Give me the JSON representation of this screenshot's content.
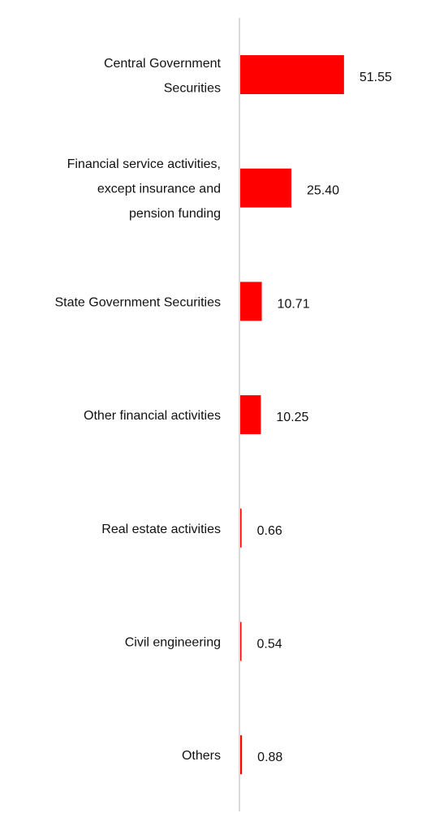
{
  "chart_data": {
    "type": "bar",
    "orientation": "horizontal",
    "categories": [
      "Central Government Securities",
      "Financial service activities, except insurance and pension funding",
      "State Government Securities",
      "Other financial activities",
      "Real estate activities",
      "Civil engineering",
      "Others"
    ],
    "category_lines": [
      [
        "Central Government",
        "Securities"
      ],
      [
        "Financial service activities,",
        "except insurance and",
        "pension funding"
      ],
      [
        "State Government Securities"
      ],
      [
        "Other financial activities"
      ],
      [
        "Real estate activities"
      ],
      [
        "Civil engineering"
      ],
      [
        "Others"
      ]
    ],
    "values": [
      51.55,
      25.4,
      10.71,
      10.25,
      0.66,
      0.54,
      0.88
    ],
    "value_labels": [
      "51.55",
      "25.40",
      "10.71",
      "10.25",
      "0.66",
      "0.54",
      "0.88"
    ],
    "title": "",
    "xlabel": "",
    "ylabel": "",
    "grid": false,
    "legend": "none",
    "colors": {
      "bar": "#ff0000",
      "axis": "#d9d9d9",
      "text": "#111111"
    }
  }
}
